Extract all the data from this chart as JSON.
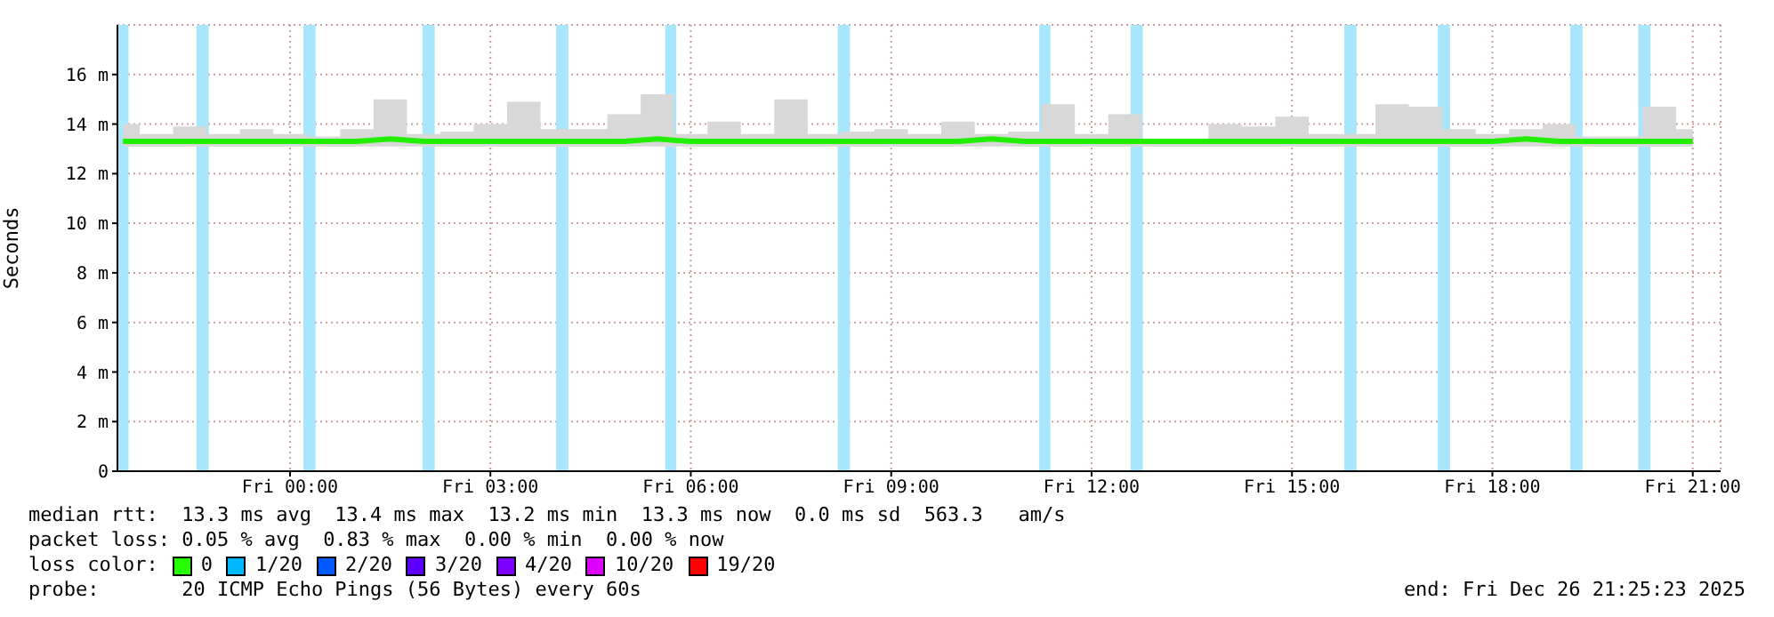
{
  "chart_data": {
    "type": "line",
    "ylabel": "Seconds",
    "x": [
      "2025-12-25T21:30",
      "2025-12-25T22:00",
      "2025-12-25T22:30",
      "2025-12-25T23:00",
      "2025-12-25T23:30",
      "2025-12-26T00:00",
      "2025-12-26T00:30",
      "2025-12-26T01:00",
      "2025-12-26T01:30",
      "2025-12-26T02:00",
      "2025-12-26T02:30",
      "2025-12-26T03:00",
      "2025-12-26T03:30",
      "2025-12-26T04:00",
      "2025-12-26T04:30",
      "2025-12-26T05:00",
      "2025-12-26T05:30",
      "2025-12-26T06:00",
      "2025-12-26T06:30",
      "2025-12-26T07:00",
      "2025-12-26T07:30",
      "2025-12-26T08:00",
      "2025-12-26T08:30",
      "2025-12-26T09:00",
      "2025-12-26T09:30",
      "2025-12-26T10:00",
      "2025-12-26T10:30",
      "2025-12-26T11:00",
      "2025-12-26T11:30",
      "2025-12-26T12:00",
      "2025-12-26T12:30",
      "2025-12-26T13:00",
      "2025-12-26T13:30",
      "2025-12-26T14:00",
      "2025-12-26T14:30",
      "2025-12-26T15:00",
      "2025-12-26T15:30",
      "2025-12-26T16:00",
      "2025-12-26T16:30",
      "2025-12-26T17:00",
      "2025-12-26T17:30",
      "2025-12-26T18:00",
      "2025-12-26T18:30",
      "2025-12-26T19:00",
      "2025-12-26T19:30",
      "2025-12-26T20:00",
      "2025-12-26T20:30",
      "2025-12-26T21:00"
    ],
    "series": [
      {
        "color": "#22ee00",
        "values": [
          13.3,
          13.3,
          13.3,
          13.3,
          13.3,
          13.3,
          13.3,
          13.3,
          13.4,
          13.3,
          13.3,
          13.3,
          13.3,
          13.3,
          13.3,
          13.3,
          13.4,
          13.3,
          13.3,
          13.3,
          13.3,
          13.3,
          13.3,
          13.3,
          13.3,
          13.3,
          13.4,
          13.3,
          13.3,
          13.3,
          13.3,
          13.3,
          13.3,
          13.3,
          13.3,
          13.3,
          13.3,
          13.3,
          13.3,
          13.3,
          13.3,
          13.3,
          13.4,
          13.3,
          13.3,
          13.3,
          13.3,
          13.3
        ],
        "lower": [
          13.1,
          13.1,
          13.1,
          13.1,
          13.1,
          13.1,
          13.1,
          13.1,
          13.1,
          13.1,
          13.1,
          13.1,
          13.1,
          13.1,
          13.1,
          13.1,
          13.1,
          13.1,
          13.1,
          13.1,
          13.1,
          13.1,
          13.1,
          13.1,
          13.1,
          13.1,
          13.1,
          13.1,
          13.1,
          13.1,
          13.1,
          13.1,
          13.1,
          13.1,
          13.1,
          13.1,
          13.1,
          13.1,
          13.1,
          13.1,
          13.1,
          13.1,
          13.1,
          13.1,
          13.1,
          13.1,
          13.1,
          13.1
        ],
        "upper": [
          14.0,
          13.6,
          13.9,
          13.6,
          13.8,
          13.6,
          13.5,
          13.8,
          15.0,
          13.6,
          13.7,
          14.0,
          14.9,
          13.8,
          13.8,
          14.4,
          15.2,
          13.6,
          14.1,
          13.6,
          15.0,
          13.6,
          13.7,
          13.8,
          13.6,
          14.1,
          13.6,
          13.7,
          14.8,
          13.6,
          14.4,
          13.4,
          13.4,
          14.0,
          13.9,
          14.3,
          13.6,
          13.6,
          14.8,
          14.7,
          13.8,
          13.6,
          13.8,
          14.0,
          13.5,
          13.5,
          14.7,
          13.8
        ]
      }
    ],
    "xlim": [
      "2025-12-25T21:25",
      "2025-12-26T21:25"
    ],
    "xticks": [
      {
        "value": "2025-12-26T00:00",
        "label": "Fri 00:00"
      },
      {
        "value": "2025-12-26T03:00",
        "label": "Fri 03:00"
      },
      {
        "value": "2025-12-26T06:00",
        "label": "Fri 06:00"
      },
      {
        "value": "2025-12-26T09:00",
        "label": "Fri 09:00"
      },
      {
        "value": "2025-12-26T12:00",
        "label": "Fri 12:00"
      },
      {
        "value": "2025-12-26T15:00",
        "label": "Fri 15:00"
      },
      {
        "value": "2025-12-26T18:00",
        "label": "Fri 18:00"
      },
      {
        "value": "2025-12-26T21:00",
        "label": "Fri 21:00"
      }
    ],
    "ylim": [
      0,
      18
    ],
    "yticks": [
      0,
      {
        "value": 2,
        "label": "2 m"
      },
      {
        "value": 4,
        "label": "4 m"
      },
      {
        "value": 6,
        "label": "6 m"
      },
      {
        "value": 8,
        "label": "8 m"
      },
      {
        "value": 10,
        "label": "10 m"
      },
      {
        "value": 12,
        "label": "12 m"
      },
      {
        "value": 14,
        "label": "14 m"
      },
      {
        "value": 16,
        "label": "16 m"
      }
    ],
    "grid": true,
    "line_style": "solid",
    "bands": [
      {
        "axis": "x",
        "from": "2025-12-25T21:25",
        "to": "2025-12-25T21:35",
        "color": "#a8e6fb"
      },
      {
        "axis": "x",
        "from": "2025-12-25T22:36",
        "to": "2025-12-25T22:47",
        "color": "#a8e6fb"
      },
      {
        "axis": "x",
        "from": "2025-12-26T00:12",
        "to": "2025-12-26T00:23",
        "color": "#a8e6fb"
      },
      {
        "axis": "x",
        "from": "2025-12-26T01:59",
        "to": "2025-12-26T02:10",
        "color": "#a8e6fb"
      },
      {
        "axis": "x",
        "from": "2025-12-26T03:59",
        "to": "2025-12-26T04:10",
        "color": "#a8e6fb"
      },
      {
        "axis": "x",
        "from": "2025-12-26T05:37",
        "to": "2025-12-26T05:47",
        "color": "#a8e6fb"
      },
      {
        "axis": "x",
        "from": "2025-12-26T08:12",
        "to": "2025-12-26T08:23",
        "color": "#a8e6fb"
      },
      {
        "axis": "x",
        "from": "2025-12-26T11:13",
        "to": "2025-12-26T11:23",
        "color": "#a8e6fb"
      },
      {
        "axis": "x",
        "from": "2025-12-26T12:35",
        "to": "2025-12-26T12:46",
        "color": "#a8e6fb"
      },
      {
        "axis": "x",
        "from": "2025-12-26T15:47",
        "to": "2025-12-26T15:58",
        "color": "#a8e6fb"
      },
      {
        "axis": "x",
        "from": "2025-12-26T17:11",
        "to": "2025-12-26T17:22",
        "color": "#a8e6fb"
      },
      {
        "axis": "x",
        "from": "2025-12-26T19:10",
        "to": "2025-12-26T19:21",
        "color": "#a8e6fb"
      },
      {
        "axis": "x",
        "from": "2025-12-26T20:11",
        "to": "2025-12-26T20:22",
        "color": "#a8e6fb"
      }
    ],
    "annotations": [
      "median rtt:  13.3 ms avg  13.4 ms max  13.2 ms min  13.3 ms now  0.0 ms sd  563.3   am/s",
      "packet loss: 0.05 % avg  0.83 % max  0.00 % min  0.00 % now",
      "loss color:",
      "0",
      "1/20",
      "2/20",
      "3/20",
      "4/20",
      "10/20",
      "19/20",
      "probe:       20 ICMP Echo Pings (56 Bytes) every 60s",
      "end: Fri Dec 26 21:25:23 2025"
    ]
  }
}
